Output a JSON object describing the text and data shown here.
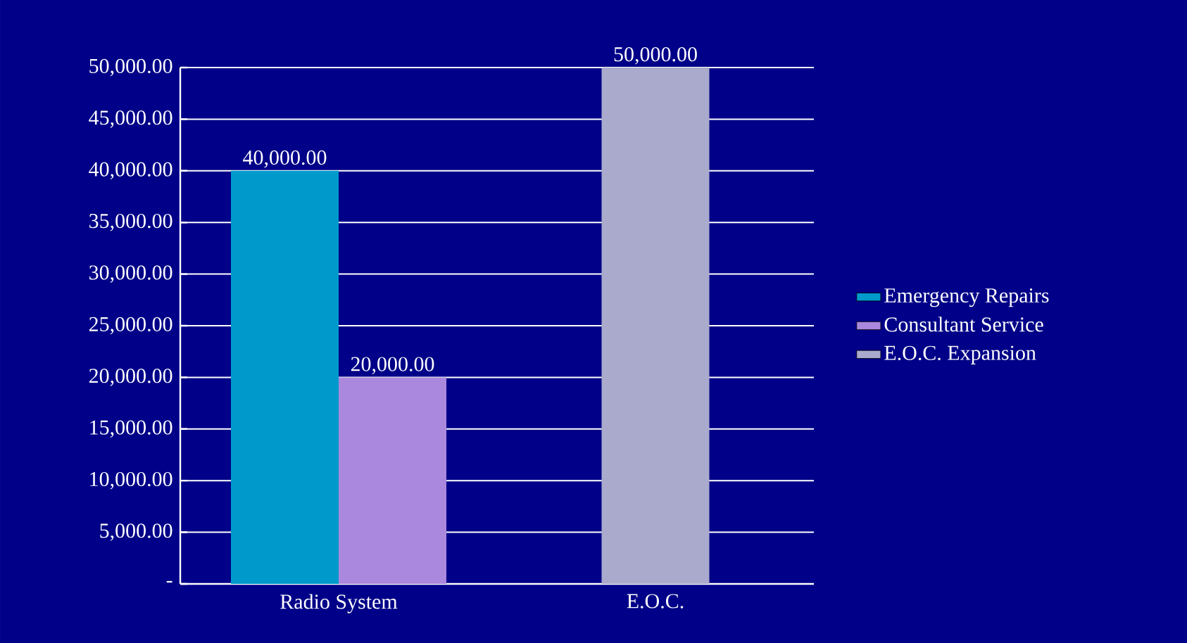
{
  "chart_data": {
    "type": "bar",
    "categories": [
      "Radio System",
      "E.O.C."
    ],
    "series": [
      {
        "name": "Emergency Repairs",
        "color": "#0099cc",
        "values": [
          40000,
          null
        ],
        "value_labels": [
          "40,000.00",
          null
        ]
      },
      {
        "name": "Consultant Service",
        "color": "#aa88dd",
        "values": [
          20000,
          null
        ],
        "value_labels": [
          "20,000.00",
          null
        ]
      },
      {
        "name": "E.O.C. Expansion",
        "color": "#aaaacc",
        "values": [
          null,
          50000
        ],
        "value_labels": [
          null,
          "50,000.00"
        ]
      }
    ],
    "ylim": [
      0,
      50000
    ],
    "yticks": [
      {
        "value": 0,
        "label": "-"
      },
      {
        "value": 5000,
        "label": "5,000.00"
      },
      {
        "value": 10000,
        "label": "10,000.00"
      },
      {
        "value": 15000,
        "label": "15,000.00"
      },
      {
        "value": 20000,
        "label": "20,000.00"
      },
      {
        "value": 25000,
        "label": "25,000.00"
      },
      {
        "value": 30000,
        "label": "30,000.00"
      },
      {
        "value": 35000,
        "label": "35,000.00"
      },
      {
        "value": 40000,
        "label": "40,000.00"
      },
      {
        "value": 45000,
        "label": "45,000.00"
      },
      {
        "value": 50000,
        "label": "50,000.00"
      }
    ],
    "grid": "y",
    "legend": "right"
  }
}
